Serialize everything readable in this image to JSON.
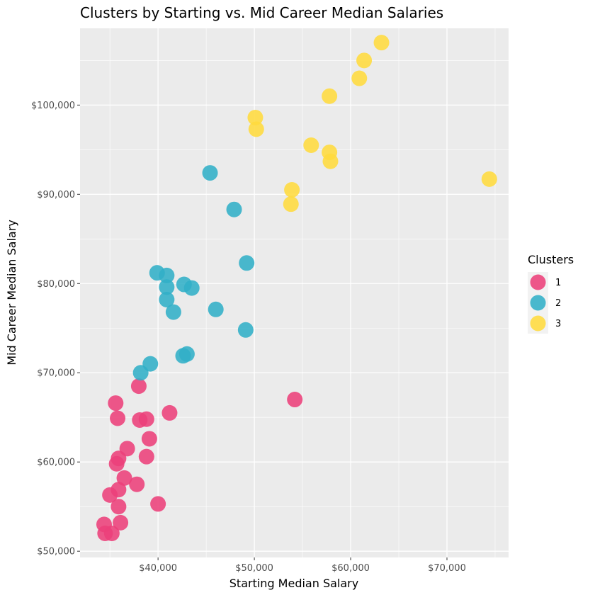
{
  "chart_data": {
    "type": "scatter",
    "title": "Clusters by Starting vs. Mid Career Median Salaries",
    "xlabel": "Starting Median Salary",
    "ylabel": "Mid Career Median Salary",
    "xlim": [
      31900,
      76400
    ],
    "ylim": [
      49300,
      108600
    ],
    "x_ticks": [
      40000,
      50000,
      60000,
      70000
    ],
    "x_tick_labels": [
      "$40,000",
      "$50,000",
      "$60,000",
      "$70,000"
    ],
    "y_ticks": [
      50000,
      60000,
      70000,
      80000,
      90000,
      100000
    ],
    "y_tick_labels": [
      "$50,000",
      "$60,000",
      "$70,000",
      "$80,000",
      "$90,000",
      "$100,000"
    ],
    "grid": true,
    "legend": {
      "title": "Clusters",
      "position": "right"
    },
    "series": [
      {
        "name": "1",
        "color": "#EC407A",
        "points": [
          [
            34400,
            53000
          ],
          [
            34500,
            52000
          ],
          [
            35200,
            52000
          ],
          [
            36100,
            53200
          ],
          [
            35900,
            55000
          ],
          [
            35000,
            56300
          ],
          [
            35900,
            56900
          ],
          [
            37800,
            57500
          ],
          [
            36500,
            58200
          ],
          [
            35700,
            59800
          ],
          [
            35900,
            60400
          ],
          [
            36800,
            61500
          ],
          [
            38800,
            60600
          ],
          [
            39100,
            62600
          ],
          [
            40000,
            55300
          ],
          [
            38100,
            64700
          ],
          [
            38800,
            64800
          ],
          [
            35800,
            64900
          ],
          [
            35600,
            66600
          ],
          [
            41200,
            65500
          ],
          [
            38000,
            68500
          ],
          [
            54200,
            67000
          ]
        ]
      },
      {
        "name": "2",
        "color": "#31AFC7",
        "points": [
          [
            38200,
            70000
          ],
          [
            39200,
            71000
          ],
          [
            42600,
            71900
          ],
          [
            43000,
            72100
          ],
          [
            41600,
            76800
          ],
          [
            46000,
            77100
          ],
          [
            49100,
            74800
          ],
          [
            40900,
            78200
          ],
          [
            40900,
            79600
          ],
          [
            42700,
            79900
          ],
          [
            43500,
            79500
          ],
          [
            39900,
            81200
          ],
          [
            40900,
            80900
          ],
          [
            49200,
            82300
          ],
          [
            47900,
            88300
          ],
          [
            45400,
            92400
          ]
        ]
      },
      {
        "name": "3",
        "color": "#FFDB3D",
        "points": [
          [
            53800,
            88900
          ],
          [
            53900,
            90500
          ],
          [
            57900,
            93700
          ],
          [
            57800,
            94700
          ],
          [
            55900,
            95500
          ],
          [
            50200,
            97300
          ],
          [
            50100,
            98600
          ],
          [
            57800,
            101000
          ],
          [
            60900,
            103000
          ],
          [
            61400,
            105000
          ],
          [
            63200,
            107000
          ],
          [
            74400,
            91700
          ]
        ]
      }
    ]
  }
}
